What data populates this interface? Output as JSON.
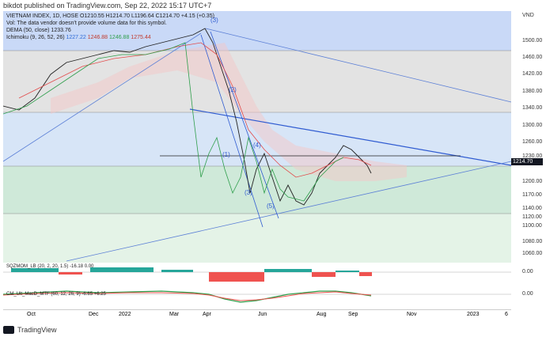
{
  "header": {
    "text": "bikdot published on TradingView.com, Sep 22, 2022 15:17 UTC+7"
  },
  "legend": {
    "line1": "VIETNAM INDEX, 1D, HOSE  O1210.55  H1214.70  L1196.64  C1214.70  +4.15 (+0.35)",
    "line2": "Vol: The data vendor doesn't provide volume data for this symbol.",
    "line3_label": "DEMA (50, close)",
    "line3_value": "1233.76",
    "line4_label": "Ichimoku (9, 26, 52, 26)",
    "line4_v1": "1227.22",
    "line4_v2": "1246.88",
    "line4_v3": "1246.88",
    "line4_v4": "1275.44"
  },
  "price_axis": {
    "currency": "VND",
    "ticks": [
      "1500.00",
      "1460.00",
      "1420.00",
      "1380.00",
      "1340.00",
      "1300.00",
      "1260.00",
      "1230.00",
      "1200.00",
      "1170.00",
      "1140.00",
      "1120.00",
      "1100.00",
      "1080.00",
      "1060.00"
    ],
    "last_price": "1214.70",
    "sub1_value": "0.00",
    "sub2_value": "0.00"
  },
  "time_axis": {
    "labels": [
      "Oct",
      "Dec",
      "2022",
      "Mar",
      "Apr",
      "Jun",
      "Aug",
      "Sep",
      "Nov",
      "2023",
      "6"
    ]
  },
  "wave_labels": [
    "(1)",
    "(2)",
    "(3)",
    "(4)",
    "(5)",
    "(1)",
    "(3)"
  ],
  "sub1_label": "SQZMOM_LB (20, 2, 20, 1.5)  -16.18  0.00",
  "sub2_label": "CM_Ult_MacD_MTF (60, 12, 26, 9)  -6.65  +6.25",
  "footer": {
    "brand": "TradingView"
  },
  "colors": {
    "bull": "#26a69a",
    "bear": "#ef5350",
    "blue_zone": "#c9d9f7",
    "green_zone": "#d7eee0",
    "gray_zone": "#e3e3e3"
  }
}
